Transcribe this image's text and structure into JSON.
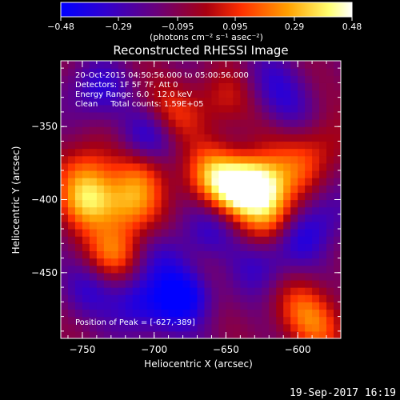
{
  "chart_data": {
    "type": "heatmap",
    "title": "Reconstructed RHESSI Image",
    "xlabel": "Heliocentric X (arcsec)",
    "ylabel": "Heliocentric Y (arcsec)",
    "xlim": [
      -765,
      -570
    ],
    "ylim": [
      -495,
      -305
    ],
    "x_ticks": [
      -750,
      -700,
      -650,
      -600
    ],
    "x_tick_labels": [
      "−750",
      "−700",
      "−650",
      "−600"
    ],
    "y_ticks": [
      -350,
      -400,
      -450
    ],
    "y_tick_labels": [
      "−350",
      "−400",
      "−450"
    ],
    "colorbar": {
      "range": [
        -0.48,
        0.48
      ],
      "ticks": [
        -0.48,
        -0.29,
        -0.095,
        0.095,
        0.29,
        0.48
      ],
      "tick_labels": [
        "−0.48",
        "−0.29",
        "−0.095",
        "0.095",
        "0.29",
        "0.48"
      ],
      "unit_label": "(photons cm⁻² s⁻¹ asec⁻²)",
      "colors": [
        "#0000ff",
        "#4000c8",
        "#800080",
        "#c00000",
        "#ff4000",
        "#ffa000",
        "#ffff60",
        "#ffffff"
      ]
    },
    "annotations": [
      "20-Oct-2015 04:50:56.000 to 05:00:56.000",
      "Detectors: 1F 5F 7F, Att 0",
      "Energy Range: 6.0 - 12.0 keV",
      "Clean     Total counts: 1.59E+05"
    ],
    "peak_label": "Position of Peak = [-627,-389]",
    "peak": [
      -627,
      -389
    ],
    "sources": [
      {
        "x": -627,
        "y": -389,
        "peak": 0.48
      },
      {
        "x": -643,
        "y": -393,
        "peak": 0.4
      },
      {
        "x": -617,
        "y": -412,
        "peak": 0.34
      },
      {
        "x": -660,
        "y": -382,
        "peak": 0.32
      },
      {
        "x": -745,
        "y": -400,
        "peak": 0.42
      },
      {
        "x": -728,
        "y": -436,
        "peak": 0.32
      },
      {
        "x": -748,
        "y": -378,
        "peak": 0.22
      },
      {
        "x": -716,
        "y": -404,
        "peak": 0.3
      },
      {
        "x": -708,
        "y": -382,
        "peak": 0.2
      },
      {
        "x": -693,
        "y": -440,
        "peak": 0.12
      },
      {
        "x": -666,
        "y": -452,
        "peak": 0.14
      },
      {
        "x": -600,
        "y": -378,
        "peak": 0.18
      },
      {
        "x": -583,
        "y": -363,
        "peak": 0.14
      },
      {
        "x": -598,
        "y": -472,
        "peak": 0.2
      },
      {
        "x": -585,
        "y": -488,
        "peak": 0.22
      },
      {
        "x": -651,
        "y": -330,
        "peak": 0.18
      },
      {
        "x": -700,
        "y": -335,
        "peak": 0.08
      },
      {
        "x": -686,
        "y": -345,
        "peak": 0.2
      },
      {
        "x": -617,
        "y": -348,
        "peak": 0.1
      },
      {
        "x": -675,
        "y": -462,
        "peak": -0.38
      },
      {
        "x": -692,
        "y": -440,
        "peak": -0.3
      },
      {
        "x": -712,
        "y": -470,
        "peak": -0.26
      },
      {
        "x": -745,
        "y": -460,
        "peak": -0.18
      },
      {
        "x": -627,
        "y": -445,
        "peak": -0.2
      },
      {
        "x": -703,
        "y": -355,
        "peak": -0.28
      },
      {
        "x": -740,
        "y": -325,
        "peak": -0.24
      },
      {
        "x": -620,
        "y": -318,
        "peak": -0.15
      },
      {
        "x": -600,
        "y": -425,
        "peak": -0.24
      },
      {
        "x": -610,
        "y": -340,
        "peak": -0.2
      },
      {
        "x": -660,
        "y": -420,
        "peak": -0.18
      },
      {
        "x": -690,
        "y": -480,
        "peak": -0.12
      },
      {
        "x": -580,
        "y": -410,
        "peak": -0.16
      }
    ]
  },
  "footer": {
    "date": "19-Sep-2017 16:19"
  }
}
